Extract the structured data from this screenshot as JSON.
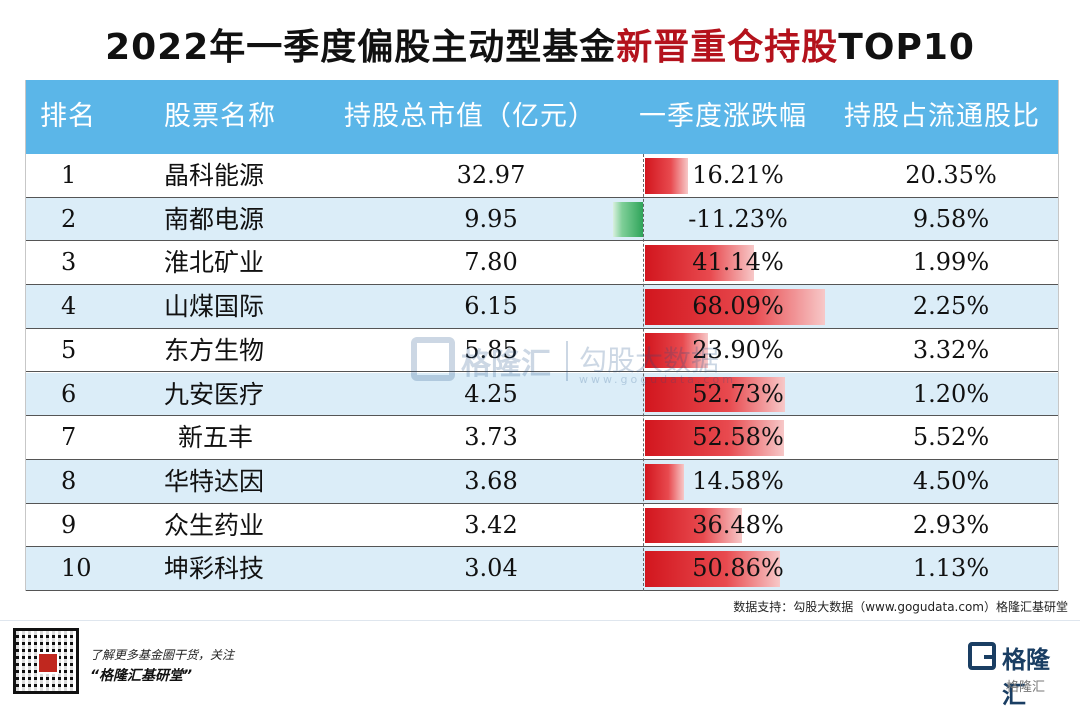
{
  "title": {
    "part1": "2022年一季度偏股主动型基金",
    "part2": "新晋重仓持股",
    "part3": "TOP10",
    "highlight_color": "#b4121c"
  },
  "chart_data": {
    "type": "table",
    "columns": [
      "排名",
      "股票名称",
      "持股总市值（亿元）",
      "一季度涨跌幅",
      "持股占流通股比"
    ],
    "rows": [
      {
        "rank": "1",
        "name": "晶科能源",
        "market_value": "32.97",
        "change": "16.21%",
        "change_value": 16.21,
        "ratio": "20.35%"
      },
      {
        "rank": "2",
        "name": "南都电源",
        "market_value": "9.95",
        "change": "-11.23%",
        "change_value": -11.23,
        "ratio": "9.58%"
      },
      {
        "rank": "3",
        "name": "淮北矿业",
        "market_value": "7.80",
        "change": "41.14%",
        "change_value": 41.14,
        "ratio": "1.99%"
      },
      {
        "rank": "4",
        "name": "山煤国际",
        "market_value": "6.15",
        "change": "68.09%",
        "change_value": 68.09,
        "ratio": "2.25%"
      },
      {
        "rank": "5",
        "name": "东方生物",
        "market_value": "5.85",
        "change": "23.90%",
        "change_value": 23.9,
        "ratio": "3.32%"
      },
      {
        "rank": "6",
        "name": "九安医疗",
        "market_value": "4.25",
        "change": "52.73%",
        "change_value": 52.73,
        "ratio": "1.20%"
      },
      {
        "rank": "7",
        "name": "新五丰",
        "market_value": "3.73",
        "change": "52.58%",
        "change_value": 52.58,
        "ratio": "5.52%"
      },
      {
        "rank": "8",
        "name": "华特达因",
        "market_value": "3.68",
        "change": "14.58%",
        "change_value": 14.58,
        "ratio": "4.50%"
      },
      {
        "rank": "9",
        "name": "众生药业",
        "market_value": "3.42",
        "change": "36.48%",
        "change_value": 36.48,
        "ratio": "2.93%"
      },
      {
        "rank": "10",
        "name": "坤彩科技",
        "market_value": "3.04",
        "change": "50.86%",
        "change_value": 50.86,
        "ratio": "1.13%"
      }
    ],
    "bar_colors": {
      "positive": "#d2161e",
      "negative": "#2fa45a"
    }
  },
  "watermark": {
    "text1": "格隆汇",
    "text2": "勾股大数据",
    "sub": "www.gogudata.com"
  },
  "source": "数据支持：勾股大数据（www.gogudata.com）格隆汇基研堂",
  "footer": {
    "line1": "了解更多基金圈干货，关注",
    "line2": "“格隆汇基研堂”",
    "brand": "格隆汇",
    "brand_sub": "格隆汇"
  },
  "colors": {
    "header_bg": "#5bb6e8",
    "row_alt_bg": "#dbedf8"
  }
}
